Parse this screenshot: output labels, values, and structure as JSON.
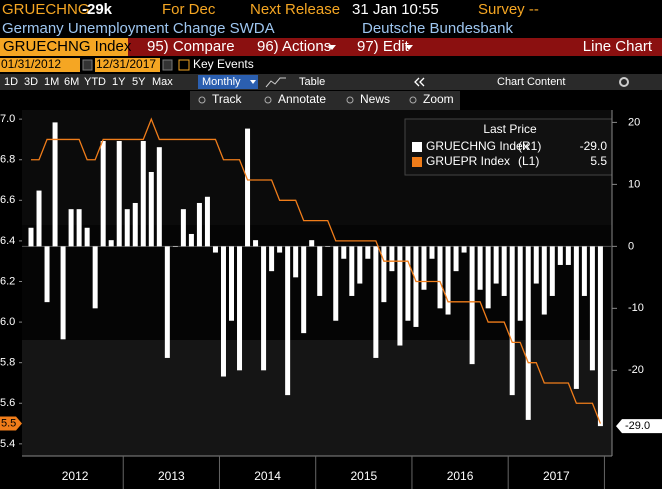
{
  "header": {
    "ticker": "GRUECHNG",
    "last": "-29k",
    "for": "For Dec",
    "next_release": "Next Release",
    "release_time": "31 Jan 10:55",
    "survey": "Survey --",
    "description": "Germany Unemployment Change SWDA",
    "source": "Deutsche Bundesbank"
  },
  "menu": {
    "security": "GRUECHNG Index",
    "compare": "95) Compare",
    "actions": "96) Actions",
    "edit": "97) Edit",
    "view": "Line Chart"
  },
  "range": {
    "start": "01/31/2012",
    "end": "12/31/2017",
    "key_events": "Key Events"
  },
  "periods": [
    "1D",
    "3D",
    "1M",
    "6M",
    "YTD",
    "1Y",
    "5Y",
    "Max"
  ],
  "toolbar": {
    "frequency": "Monthly",
    "table": "Table",
    "chart_content": "Chart Content"
  },
  "tools": [
    "Track",
    "Annotate",
    "News",
    "Zoom"
  ],
  "chart_data": {
    "type": "bar",
    "legend_title": "Last Price",
    "x_labels": [
      "2012",
      "2013",
      "2014",
      "2015",
      "2016",
      "2017"
    ],
    "ylim": [
      5.35,
      7.045
    ],
    "yticks": [
      5.4,
      5.6,
      5.8,
      {
        "value": 6,
        "label": "6.0"
      },
      6.2,
      6.4,
      6.6,
      6.8,
      {
        "value": 7,
        "label": "7.0"
      }
    ],
    "y2lim": [
      -33.5,
      22
    ],
    "y2ticks": [
      -20,
      -10,
      0,
      10,
      20
    ],
    "series": [
      {
        "name": "GRUECHNG Index",
        "axis_label": "(R1)",
        "type": "bar",
        "axis": "y2",
        "color": "#ffffff",
        "last_label": "-29.0",
        "values": [
          3,
          9,
          -9,
          20,
          -15,
          6,
          6,
          3,
          -10,
          17,
          1,
          17,
          6,
          7,
          17,
          12,
          16,
          -18,
          0,
          6,
          2,
          7,
          8,
          -1,
          -21,
          -12,
          -20,
          19,
          1,
          -20,
          -4,
          -1,
          -24,
          -5,
          -14,
          1,
          -8,
          0,
          -12,
          -2,
          -8,
          -6,
          -2,
          -18,
          -9,
          -4,
          -16,
          -12,
          -13,
          -7,
          -2,
          -10,
          -11,
          -4,
          -1,
          -19,
          -7,
          -10,
          -6,
          -8,
          -24,
          -12,
          -28,
          -6,
          -11,
          -8,
          -3,
          -3,
          -23,
          -8,
          -20,
          -29
        ]
      },
      {
        "name": "GRUEPR Index",
        "axis_label": "(L1)",
        "type": "line",
        "axis": "y",
        "color": "#f07d1a",
        "values": [
          6.8,
          6.8,
          6.9,
          6.9,
          6.9,
          6.9,
          6.9,
          6.8,
          6.8,
          6.9,
          6.9,
          6.9,
          6.9,
          6.9,
          6.9,
          7.0,
          6.9,
          6.9,
          6.9,
          6.9,
          6.9,
          6.9,
          6.9,
          6.9,
          6.8,
          6.8,
          6.8,
          6.7,
          6.7,
          6.7,
          6.7,
          6.6,
          6.6,
          6.6,
          6.5,
          6.5,
          6.5,
          6.5,
          6.4,
          6.4,
          6.4,
          6.4,
          6.4,
          6.4,
          6.3,
          6.3,
          6.3,
          6.3,
          6.2,
          6.2,
          6.2,
          6.2,
          6.1,
          6.1,
          6.1,
          6.1,
          6.1,
          6.0,
          6.0,
          6.0,
          5.9,
          5.9,
          5.8,
          5.8,
          5.7,
          5.7,
          5.7,
          5.7,
          5.6,
          5.6,
          5.6,
          5.5
        ]
      }
    ]
  }
}
